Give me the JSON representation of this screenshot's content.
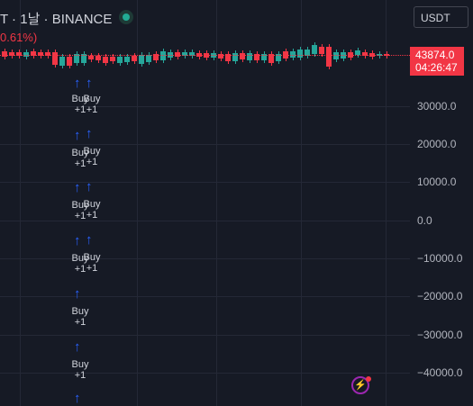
{
  "header": {
    "symbol_title": "T · 1날 · BINANCE",
    "change_text": "0.61%)",
    "currency": "USDT"
  },
  "price": {
    "last": "43874.0",
    "countdown": "04:26:47"
  },
  "y_axis": {
    "labels": [
      "30000.0",
      "20000.0",
      "10000.0",
      "0.0",
      "−10000.0",
      "−20000.0",
      "−30000.0",
      "−40000.0"
    ]
  },
  "signals": [
    {
      "label": "Buy",
      "qty": "+1"
    },
    {
      "label": "Buy",
      "qty": "+1"
    },
    {
      "label": "Buy",
      "qty": "+1"
    },
    {
      "label": "Buy",
      "qty": "+1"
    },
    {
      "label": "Buy",
      "qty": "+1"
    },
    {
      "label": "Buy",
      "qty": "+1"
    },
    {
      "label": "Buy",
      "qty": "+1"
    },
    {
      "label": "Buy",
      "qty": "+1"
    },
    {
      "label": "Buy",
      "qty": "+1"
    },
    {
      "label": "Buy",
      "qty": "+1"
    }
  ],
  "colors": {
    "up": "#26a69a",
    "down": "#f23645",
    "buy_arrow": "#2962ff"
  },
  "icons": {
    "arrow": "up-arrow",
    "bolt": "lightning-icon"
  }
}
